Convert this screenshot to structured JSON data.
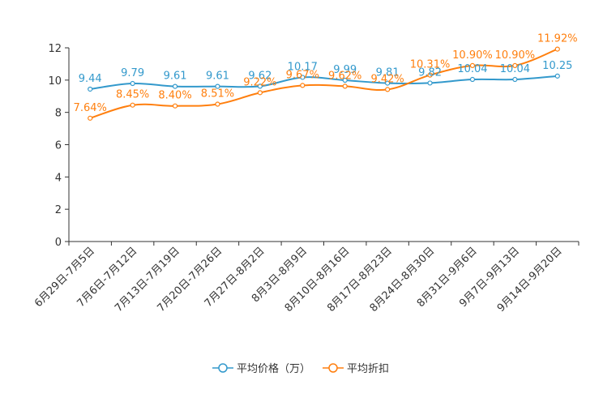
{
  "chart_data": {
    "type": "line",
    "title": "",
    "xlabel": "",
    "ylabel": "",
    "ylim": [
      0,
      12
    ],
    "yticks": [
      0,
      2,
      4,
      6,
      8,
      10,
      12
    ],
    "categories": [
      "6月29日-7月5日",
      "7月6日-7月12日",
      "7月13日-7月19日",
      "7月20日-7月26日",
      "7月27日-8月2日",
      "8月3日-8月9日",
      "8月10日-8月16日",
      "8月17日-8月23日",
      "8月24日-8月30日",
      "8月31日-9月6日",
      "9月7日-9月13日",
      "9月14日-9月20日"
    ],
    "series": [
      {
        "name": "平均价格（万）",
        "color": "#3399cc",
        "values": [
          9.44,
          9.79,
          9.61,
          9.61,
          9.62,
          10.17,
          9.99,
          9.81,
          9.82,
          10.04,
          10.04,
          10.25
        ],
        "labels": [
          "9.44",
          "9.79",
          "9.61",
          "9.61",
          "9.62",
          "10.17",
          "9.99",
          "9.81",
          "9.82",
          "10.04",
          "10.04",
          "10.25"
        ]
      },
      {
        "name": "平均折扣",
        "color": "#ff7f0e",
        "values": [
          7.64,
          8.45,
          8.4,
          8.51,
          9.22,
          9.67,
          9.62,
          9.42,
          10.31,
          10.9,
          10.9,
          11.92
        ],
        "labels": [
          "7.64%",
          "8.45%",
          "8.40%",
          "8.51%",
          "9.22%",
          "9.67%",
          "9.62%",
          "9.42%",
          "10.31%",
          "10.90%",
          "10.90%",
          "11.92%"
        ]
      }
    ],
    "legend_position": "bottom-center"
  }
}
